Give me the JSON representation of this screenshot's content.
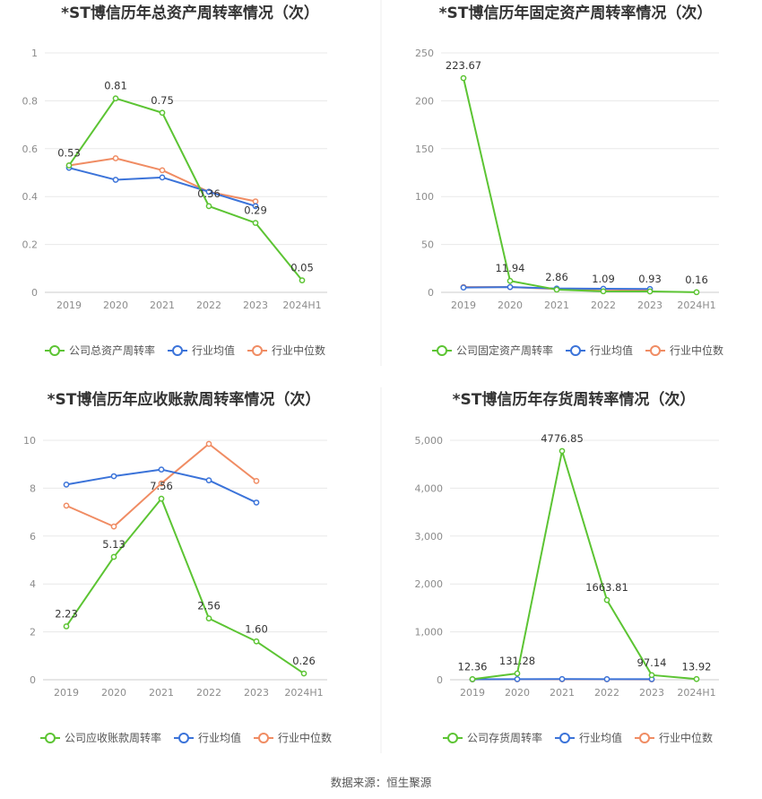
{
  "source": "数据来源：恒生聚源",
  "chart_data": [
    {
      "type": "line",
      "title": "*ST博信历年总资产周转率情况（次）",
      "categories": [
        "2019",
        "2020",
        "2021",
        "2022",
        "2023",
        "2024H1"
      ],
      "yticks": [
        "0",
        "0.2",
        "0.4",
        "0.6",
        "0.8",
        "1"
      ],
      "ylim": [
        0,
        1
      ],
      "series": [
        {
          "name": "公司总资产周转率",
          "color": "#5cc433",
          "values": [
            0.53,
            0.81,
            0.75,
            0.36,
            0.29,
            0.05
          ],
          "labels": [
            "0.53",
            "0.81",
            "0.75",
            "0.36",
            "0.29",
            "0.05"
          ]
        },
        {
          "name": "行业均值",
          "color": "#3b73d9",
          "values": [
            0.52,
            0.47,
            0.48,
            0.42,
            0.36,
            null
          ]
        },
        {
          "name": "行业中位数",
          "color": "#f08c63",
          "values": [
            0.53,
            0.56,
            0.51,
            0.42,
            0.38,
            null
          ]
        }
      ]
    },
    {
      "type": "line",
      "title": "*ST博信历年固定资产周转率情况（次）",
      "categories": [
        "2019",
        "2020",
        "2021",
        "2022",
        "2023",
        "2024H1"
      ],
      "yticks": [
        "0",
        "50",
        "100",
        "150",
        "200",
        "250"
      ],
      "ylim": [
        0,
        250
      ],
      "series": [
        {
          "name": "公司固定资产周转率",
          "color": "#5cc433",
          "values": [
            223.67,
            11.94,
            2.86,
            1.09,
            0.93,
            0.16
          ],
          "labels": [
            "223.67",
            "11.94",
            "2.86",
            "1.09",
            "0.93",
            "0.16"
          ]
        },
        {
          "name": "行业均值",
          "color": "#3b73d9",
          "values": [
            5,
            5.5,
            4,
            3.8,
            3.5,
            null
          ]
        },
        {
          "name": "行业中位数",
          "color": "#f08c63",
          "values": [
            5.5,
            5.5,
            3.5,
            3,
            2.5,
            null
          ]
        }
      ]
    },
    {
      "type": "line",
      "title": "*ST博信历年应收账款周转率情况（次）",
      "categories": [
        "2019",
        "2020",
        "2021",
        "2022",
        "2023",
        "2024H1"
      ],
      "yticks": [
        "0",
        "2",
        "4",
        "6",
        "8",
        "10"
      ],
      "ylim": [
        0,
        10
      ],
      "series": [
        {
          "name": "公司应收账款周转率",
          "color": "#5cc433",
          "values": [
            2.23,
            5.13,
            7.56,
            2.56,
            1.6,
            0.26
          ],
          "labels": [
            "2.23",
            "5.13",
            "7.56",
            "2.56",
            "1.60",
            "0.26"
          ]
        },
        {
          "name": "行业均值",
          "color": "#3b73d9",
          "values": [
            8.15,
            8.5,
            8.78,
            8.33,
            7.4,
            null
          ]
        },
        {
          "name": "行业中位数",
          "color": "#f08c63",
          "values": [
            7.27,
            6.4,
            8.2,
            9.85,
            8.3,
            null
          ]
        }
      ]
    },
    {
      "type": "line",
      "title": "*ST博信历年存货周转率情况（次）",
      "categories": [
        "2019",
        "2020",
        "2021",
        "2022",
        "2023",
        "2024H1"
      ],
      "yticks": [
        "0",
        "1,000",
        "2,000",
        "3,000",
        "4,000",
        "5,000"
      ],
      "ylim": [
        0,
        5000
      ],
      "series": [
        {
          "name": "公司存货周转率",
          "color": "#5cc433",
          "values": [
            12.36,
            131.28,
            4776.85,
            1663.81,
            97.14,
            13.92
          ],
          "labels": [
            "12.36",
            "131.28",
            "4776.85",
            "1663.81",
            "97.14",
            "13.92"
          ]
        },
        {
          "name": "行业均值",
          "color": "#3b73d9",
          "values": [
            10,
            12,
            14,
            12,
            11,
            null
          ]
        },
        {
          "name": "行业中位数",
          "color": "#f08c63",
          "values": [
            8,
            9,
            10,
            9,
            8,
            null
          ]
        }
      ]
    }
  ],
  "colors": {
    "grid": "#e8e8e8",
    "axis": "#cccccc",
    "divider": "#eeeeee"
  }
}
